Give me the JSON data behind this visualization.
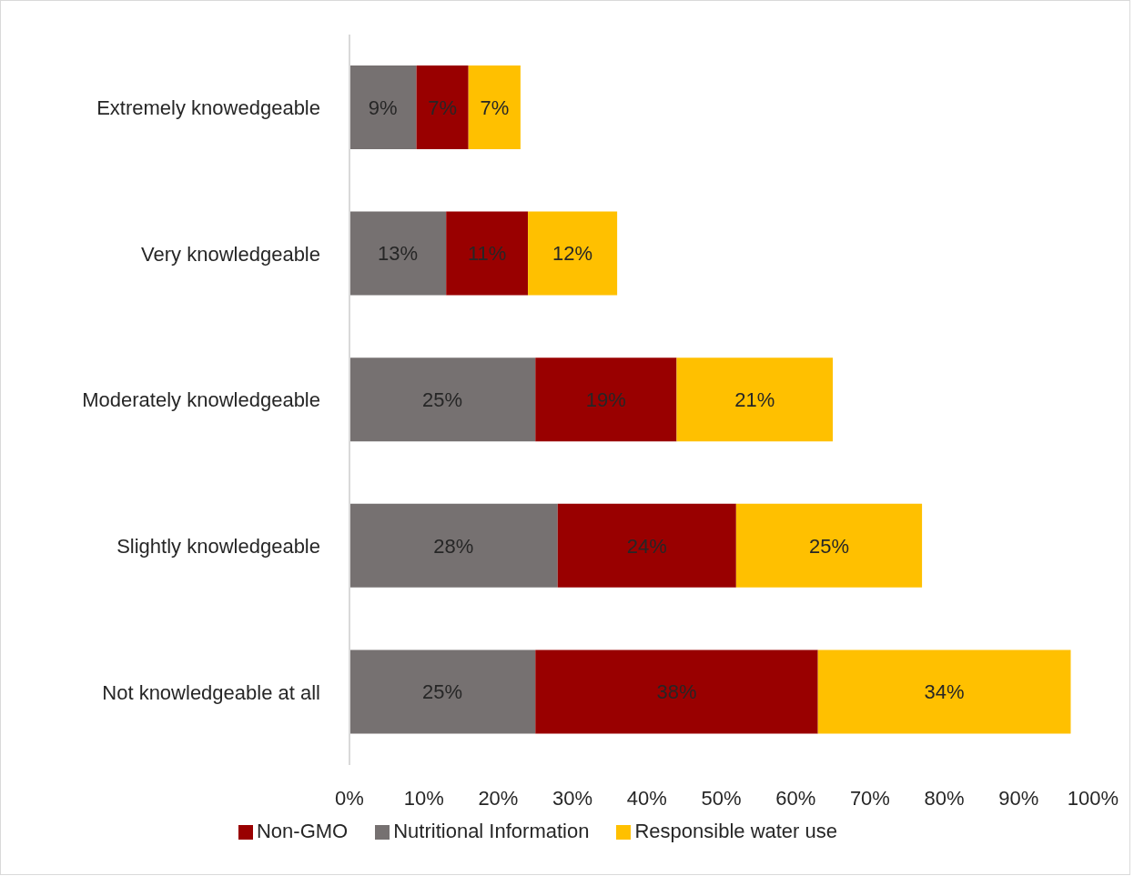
{
  "chart_data": {
    "type": "bar",
    "orientation": "horizontal",
    "stacked": true,
    "categories": [
      "Extremely knowedgeable",
      "Very knowledgeable",
      "Moderately knowledgeable",
      "Slightly knowledgeable",
      "Not knowledgeable at all"
    ],
    "series": [
      {
        "name": "Nutritional Information",
        "color": "#767171",
        "values": [
          9,
          13,
          25,
          28,
          25
        ],
        "value_labels": [
          "9%",
          "13%",
          "25%",
          "28%",
          "25%"
        ]
      },
      {
        "name": "Non-GMO",
        "color": "#990000",
        "values": [
          7,
          11,
          19,
          24,
          38
        ],
        "value_labels": [
          "7%",
          "11%",
          "19%",
          "24%",
          "38%"
        ]
      },
      {
        "name": "Responsible water use",
        "color": "#ffc000",
        "values": [
          7,
          12,
          21,
          25,
          34
        ],
        "value_labels": [
          "7%",
          "12%",
          "21%",
          "25%",
          "34%"
        ]
      }
    ],
    "xlim": [
      0,
      100
    ],
    "xticks": [
      {
        "value": 0,
        "label": "0%"
      },
      {
        "value": 10,
        "label": "10%"
      },
      {
        "value": 20,
        "label": "20%"
      },
      {
        "value": 30,
        "label": "30%"
      },
      {
        "value": 40,
        "label": "40%"
      },
      {
        "value": 50,
        "label": "50%"
      },
      {
        "value": 60,
        "label": "60%"
      },
      {
        "value": 70,
        "label": "70%"
      },
      {
        "value": 80,
        "label": "80%"
      },
      {
        "value": 90,
        "label": "90%"
      },
      {
        "value": 100,
        "label": "100%"
      }
    ],
    "grid": false,
    "legend": "bottom"
  }
}
